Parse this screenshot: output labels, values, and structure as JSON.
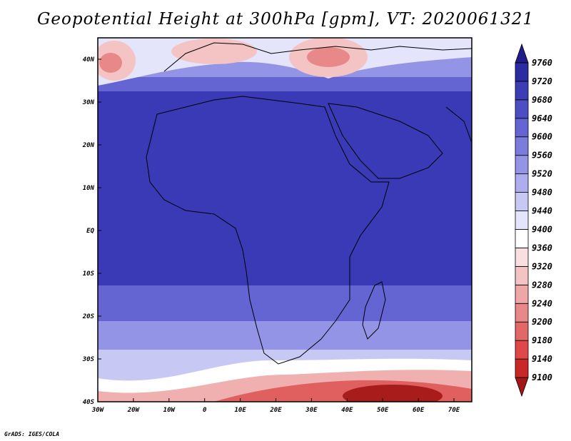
{
  "title": "Geopotential Height at 300hPa [gpm], VT: 2020061321",
  "credit": "GrADS: IGES/COLA",
  "map": {
    "lon_range": [
      -30,
      75
    ],
    "lat_range": [
      -40,
      45
    ],
    "lon_ticks": [
      "30W",
      "20W",
      "10W",
      "0",
      "10E",
      "20E",
      "30E",
      "40E",
      "50E",
      "60E",
      "70E"
    ],
    "lat_ticks": [
      "40S",
      "30S",
      "20S",
      "10S",
      "EQ",
      "10N",
      "20N",
      "30N",
      "40N"
    ]
  },
  "colorbar": {
    "levels": [
      "9100",
      "9140",
      "9180",
      "9200",
      "9240",
      "9280",
      "9320",
      "9360",
      "9400",
      "9440",
      "9480",
      "9520",
      "9560",
      "9600",
      "9640",
      "9680",
      "9720",
      "9760"
    ],
    "colors": [
      "#a01818",
      "#c82828",
      "#e04848",
      "#e26868",
      "#e88888",
      "#eea6a6",
      "#f4c4c4",
      "#f9e0e0",
      "#ffffff",
      "#e4e4fa",
      "#c8c8f4",
      "#aeaeee",
      "#9494e6",
      "#7c7cdc",
      "#6464d2",
      "#4e4ec4",
      "#3c3cb4",
      "#2c2ca2",
      "#201c8c"
    ]
  }
}
